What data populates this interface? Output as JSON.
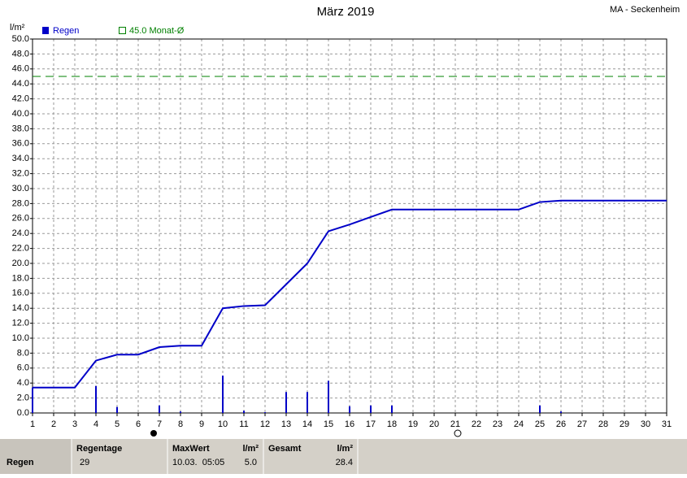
{
  "chart_data": {
    "type": "bar",
    "title": "März 2019",
    "station": "MA - Seckenheim",
    "y_label": "l/m²",
    "x": [
      1,
      2,
      3,
      4,
      5,
      6,
      7,
      8,
      9,
      10,
      11,
      12,
      13,
      14,
      15,
      16,
      17,
      18,
      19,
      20,
      21,
      22,
      23,
      24,
      25,
      26,
      27,
      28,
      29,
      30,
      31
    ],
    "xlim": [
      1,
      31
    ],
    "xticks": [
      1,
      2,
      3,
      4,
      5,
      6,
      7,
      8,
      9,
      10,
      11,
      12,
      13,
      14,
      15,
      16,
      17,
      18,
      19,
      20,
      21,
      22,
      23,
      24,
      25,
      26,
      27,
      28,
      29,
      30,
      31
    ],
    "ylim": [
      0,
      50
    ],
    "yticks": [
      {
        "value": 0,
        "label": "0.0"
      },
      {
        "value": 2,
        "label": "2.0"
      },
      {
        "value": 4,
        "label": "4.0"
      },
      {
        "value": 6,
        "label": "6.0"
      },
      {
        "value": 8,
        "label": "8.0"
      },
      {
        "value": 10,
        "label": "10.0"
      },
      {
        "value": 12,
        "label": "12.0"
      },
      {
        "value": 14,
        "label": "14.0"
      },
      {
        "value": 16,
        "label": "16.0"
      },
      {
        "value": 18,
        "label": "18.0"
      },
      {
        "value": 20,
        "label": "20.0"
      },
      {
        "value": 22,
        "label": "22.0"
      },
      {
        "value": 24,
        "label": "24.0"
      },
      {
        "value": 26,
        "label": "26.0"
      },
      {
        "value": 28,
        "label": "28.0"
      },
      {
        "value": 30,
        "label": "30.0"
      },
      {
        "value": 32,
        "label": "32.0"
      },
      {
        "value": 34,
        "label": "34.0"
      },
      {
        "value": 36,
        "label": "36.0"
      },
      {
        "value": 38,
        "label": "38.0"
      },
      {
        "value": 40,
        "label": "40.0"
      },
      {
        "value": 42,
        "label": "42.0"
      },
      {
        "value": 44,
        "label": "44.0"
      },
      {
        "value": 46,
        "label": "46.0"
      },
      {
        "value": 48,
        "label": "48.0"
      },
      {
        "value": 50,
        "label": "50.0"
      }
    ],
    "grid": true,
    "series": [
      {
        "name": "Regen",
        "color": "#0000c8",
        "values": [
          3.4,
          0,
          0,
          3.6,
          0.8,
          0,
          1.0,
          0.2,
          0,
          5.0,
          0.3,
          0.1,
          2.8,
          2.8,
          4.3,
          0.9,
          1.0,
          1.0,
          0,
          0,
          0,
          0,
          0,
          0,
          1.0,
          0.2,
          0,
          0,
          0,
          0,
          0
        ]
      }
    ],
    "cumulative_values": [
      3.4,
      3.4,
      3.4,
      7.0,
      7.8,
      7.8,
      8.8,
      9.0,
      9.0,
      14.0,
      14.3,
      14.4,
      17.2,
      20.0,
      24.3,
      25.2,
      26.2,
      27.2,
      27.2,
      27.2,
      27.2,
      27.2,
      27.2,
      27.2,
      28.2,
      28.4,
      28.4,
      28.4,
      28.4,
      28.4,
      28.4
    ],
    "reference": {
      "value": 45,
      "label": "45.0 Monat-Ø",
      "color": "#008000"
    }
  },
  "table": {
    "header": [
      "Regentage",
      "MaxWert",
      "l/m²",
      "Gesamt",
      "l/m²"
    ],
    "rows": [
      [
        "Regen",
        "29",
        "10.03.  05:05",
        "5.0",
        "28.4"
      ]
    ]
  }
}
